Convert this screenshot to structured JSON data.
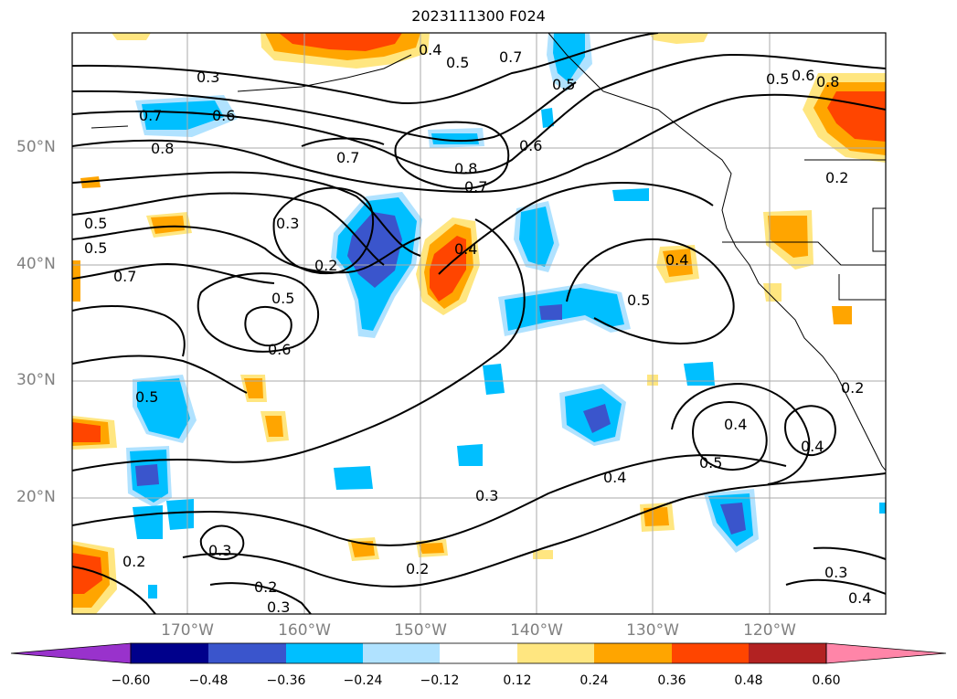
{
  "title": "2023111300 F024",
  "lat_labels": [
    "50°N",
    "40°N",
    "30°N",
    "20°N"
  ],
  "lon_labels": [
    "170°W",
    "160°W",
    "150°W",
    "140°W",
    "130°W",
    "120°W"
  ],
  "colorbar": {
    "labels": [
      "−0.60",
      "−0.48",
      "−0.36",
      "−0.24",
      "−0.12",
      "0.12",
      "0.24",
      "0.36",
      "0.48",
      "0.60"
    ],
    "colors": [
      "#9932cc",
      "#00008b",
      "#3a55cc",
      "#00bfff",
      "#b0e2ff",
      "#ffffff",
      "#ffe680",
      "#ffa500",
      "#ff4500",
      "#b22222",
      "#ff85a8"
    ]
  },
  "contour_labels": [
    "0.3",
    "0.7",
    "0.6",
    "0.8",
    "0.4",
    "0.5",
    "0.7",
    "0.5",
    "0.7",
    "0.6",
    "0.8",
    "0.7",
    "0.5",
    "0.3",
    "0.2",
    "0.5",
    "0.7",
    "0.5",
    "0.6",
    "0.4",
    "0.4",
    "0.5",
    "0.5",
    "0.2",
    "0.8",
    "0.6",
    "0.4",
    "0.5",
    "0.3",
    "0.2",
    "0.2",
    "0.3",
    "0.2",
    "0.3",
    "0.4",
    "0.4",
    "0.5",
    "0.3",
    "0.4",
    "0.2"
  ],
  "map_colors": {
    "cyan": "#00bfff",
    "light_cyan": "#b0e2ff",
    "blue": "#3a55cc",
    "yellow": "#ffe680",
    "orange": "#ffa500",
    "red_orange": "#ff4500"
  }
}
